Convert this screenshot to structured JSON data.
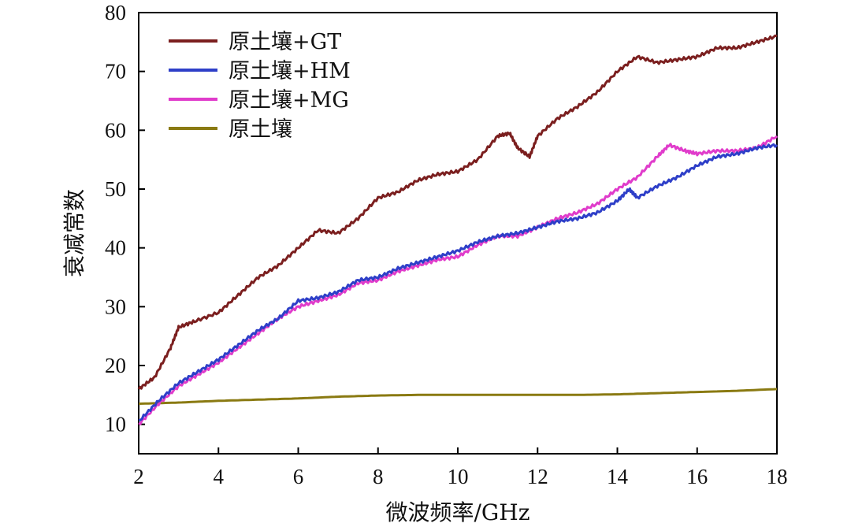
{
  "chart_data": {
    "type": "line",
    "xlabel": "微波频率/GHz",
    "ylabel": "衰减常数",
    "xlim": [
      2,
      18
    ],
    "ylim": [
      5,
      80
    ],
    "xticks": [
      2,
      4,
      6,
      8,
      10,
      12,
      14,
      16,
      18
    ],
    "yticks": [
      10,
      20,
      30,
      40,
      50,
      60,
      70,
      80
    ],
    "grid": false,
    "legend_position": "top-left",
    "series": [
      {
        "name": "原土壤+GT",
        "color": "#7b1f1f",
        "x": [
          2,
          2.4,
          2.8,
          3.0,
          3.4,
          4.0,
          4.5,
          5.0,
          5.5,
          6.0,
          6.5,
          7.0,
          7.5,
          8.0,
          8.5,
          9.0,
          9.5,
          10.0,
          10.5,
          11.0,
          11.3,
          11.5,
          11.8,
          12.0,
          12.5,
          13.0,
          13.5,
          14.0,
          14.5,
          15.0,
          15.5,
          16.0,
          16.5,
          17.0,
          17.5,
          18.0
        ],
        "y": [
          16,
          18,
          23,
          26.5,
          27.5,
          29,
          32,
          35,
          37,
          40,
          43,
          42.5,
          45,
          48.5,
          49.5,
          51.5,
          52.5,
          53,
          55,
          59,
          59.5,
          57,
          55.5,
          59,
          62,
          64,
          66.5,
          70,
          72.5,
          71.5,
          72,
          72.5,
          74,
          74,
          75,
          76
        ]
      },
      {
        "name": "原土壤+HM",
        "color": "#2e3fc8",
        "x": [
          2,
          2.5,
          3.0,
          3.5,
          4.0,
          4.5,
          5.0,
          5.5,
          6.0,
          6.5,
          7.0,
          7.5,
          8.0,
          8.5,
          9.0,
          9.5,
          10.0,
          10.5,
          11.0,
          11.5,
          12.0,
          12.5,
          13.0,
          13.5,
          14.0,
          14.3,
          14.5,
          15.0,
          15.5,
          16.0,
          16.5,
          17.0,
          17.5,
          18.0
        ],
        "y": [
          10.5,
          14,
          17,
          19,
          21,
          23.5,
          26,
          28,
          31,
          31.5,
          32.5,
          34.5,
          35,
          36.5,
          37.5,
          38.5,
          39.5,
          41,
          42,
          42.5,
          43.5,
          44.5,
          45,
          46,
          48,
          50,
          48.5,
          50.5,
          52,
          54,
          55.5,
          56,
          57,
          57.5
        ]
      },
      {
        "name": "原土壤+MG",
        "color": "#e03ccb",
        "x": [
          2,
          2.5,
          3.0,
          3.5,
          4.0,
          4.5,
          5.0,
          5.5,
          6.0,
          6.5,
          7.0,
          7.5,
          8.0,
          8.5,
          9.0,
          9.5,
          10.0,
          10.5,
          11.0,
          11.5,
          12.0,
          12.5,
          13.0,
          13.5,
          14.0,
          14.5,
          15.0,
          15.3,
          15.7,
          16.0,
          16.5,
          17.0,
          17.5,
          18.0
        ],
        "y": [
          10,
          13.5,
          16.5,
          18.5,
          20.5,
          23,
          25.5,
          28,
          30,
          31,
          32,
          34,
          34.5,
          36,
          37,
          38,
          38.5,
          40.5,
          42,
          42,
          43.5,
          45,
          46,
          47.5,
          50,
          52,
          55.5,
          57.5,
          56.5,
          56,
          56.5,
          56.5,
          57,
          59
        ]
      },
      {
        "name": "原土壤",
        "color": "#8a7a12",
        "x": [
          2,
          3,
          4,
          5,
          6,
          7,
          8,
          9,
          10,
          11,
          12,
          13,
          14,
          15,
          16,
          17,
          18
        ],
        "y": [
          13.5,
          13.7,
          14.0,
          14.2,
          14.4,
          14.7,
          14.9,
          15.0,
          15.0,
          15.0,
          15.0,
          15.0,
          15.1,
          15.3,
          15.5,
          15.7,
          16.0
        ]
      }
    ]
  }
}
